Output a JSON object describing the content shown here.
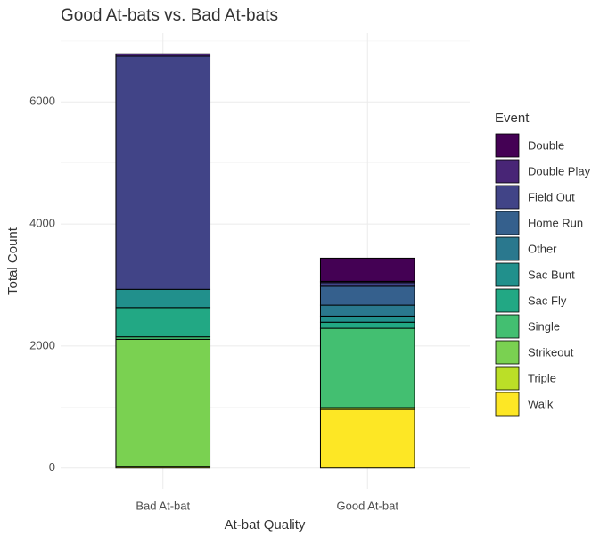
{
  "chart_data": {
    "type": "stacked_bar",
    "title": "Good At-bats vs. Bad At-bats",
    "x_label": "At-bat Quality",
    "y_label": "Total Count",
    "legend_title": "Event",
    "categories": [
      "Bad At-bat",
      "Good At-bat"
    ],
    "series": [
      {
        "name": "Double",
        "color": "#440154",
        "values": [
          0,
          380
        ]
      },
      {
        "name": "Double Play",
        "color": "#482576",
        "values": [
          40,
          20
        ]
      },
      {
        "name": "Field Out",
        "color": "#414487",
        "values": [
          3820,
          60
        ]
      },
      {
        "name": "Home Run",
        "color": "#35608D",
        "values": [
          0,
          310
        ]
      },
      {
        "name": "Other",
        "color": "#2A788E",
        "values": [
          0,
          180
        ]
      },
      {
        "name": "Sac Bunt",
        "color": "#21908C",
        "values": [
          300,
          100
        ]
      },
      {
        "name": "Sac Fly",
        "color": "#22A884",
        "values": [
          480,
          100
        ]
      },
      {
        "name": "Single",
        "color": "#43BF71",
        "values": [
          40,
          1300
        ]
      },
      {
        "name": "Strikeout",
        "color": "#7AD151",
        "values": [
          2080,
          0
        ]
      },
      {
        "name": "Triple",
        "color": "#BBDF27",
        "values": [
          0,
          30
        ]
      },
      {
        "name": "Walk",
        "color": "#FDE725",
        "values": [
          30,
          960
        ]
      }
    ],
    "ylim": [
      -340,
      7130
    ],
    "yticks": [
      0,
      2000,
      4000,
      6000
    ],
    "grid": true,
    "legend": "right"
  }
}
